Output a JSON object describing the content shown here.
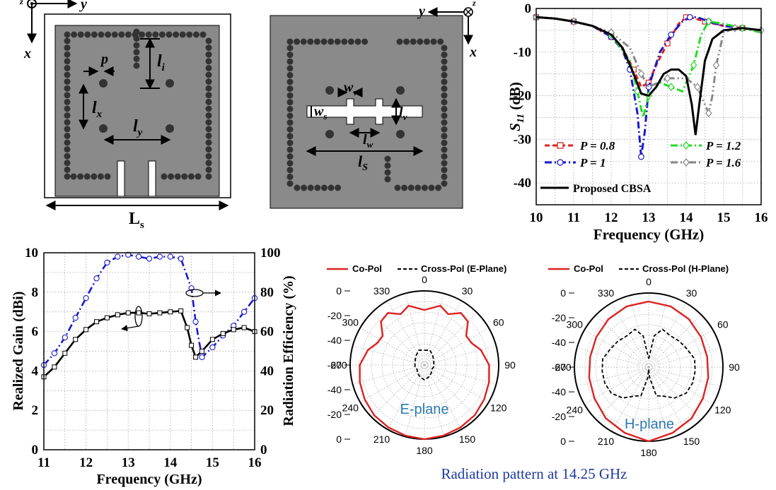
{
  "geometry": {
    "left_panel": {
      "axis_x": "x",
      "axis_y": "y",
      "axis_z": "z",
      "p": "p",
      "li": "l",
      "li_sub": "i",
      "lx": "l",
      "lx_sub": "x",
      "ly": "l",
      "ly_sub": "y",
      "Ls": "L",
      "Ls_sub": "s"
    },
    "mid_panel": {
      "axis_x": "x",
      "axis_y": "y",
      "axis_z": "z",
      "wv": "w",
      "wv_sub": "v",
      "ws": "w",
      "ws_sub": "s",
      "lv": "l",
      "lv_sub": "v",
      "lw": "l",
      "lw_sub": "w",
      "lS": "l",
      "lS_sub": "S"
    }
  },
  "colors": {
    "black": "#000000",
    "red": "#dd2222",
    "blue": "#1a1acc",
    "green": "#22dd22",
    "gray": "#888888",
    "navy": "#1f3aa0",
    "substrate": "#888888",
    "plane_label": "#2a7ab0"
  },
  "chart_data": [
    {
      "type": "line",
      "xlabel": "Frequency (GHz)",
      "ylabel": "S11 (dB)",
      "ylabel_main": "S",
      "ylabel_sub": "11",
      "ylabel_unit": " (dB)",
      "xlim": [
        10,
        16
      ],
      "ylim": [
        -45,
        0
      ],
      "xticks": [
        "10",
        "11",
        "12",
        "13",
        "14",
        "15",
        "16"
      ],
      "yticks": [
        "0",
        "-10",
        "-20",
        "-30",
        "-40"
      ],
      "grid": true,
      "legend_loc": "bottom-left",
      "series": [
        {
          "name": "P = 0.8",
          "x": [
            10,
            10.5,
            11,
            11.5,
            12,
            12.3,
            12.6,
            12.8,
            13,
            13.2,
            13.5,
            13.8,
            14,
            14.2,
            14.5,
            15,
            15.5,
            16
          ],
          "y": [
            -2,
            -2.3,
            -3,
            -4,
            -6.5,
            -9,
            -14,
            -18,
            -17,
            -13,
            -8,
            -3.5,
            -2,
            -2.2,
            -3,
            -4,
            -4.5,
            -5
          ]
        },
        {
          "name": "P = 1",
          "x": [
            10,
            10.5,
            11,
            11.5,
            12,
            12.3,
            12.5,
            12.7,
            12.8,
            12.9,
            13,
            13.3,
            13.6,
            13.9,
            14.1,
            14.3,
            14.6,
            15,
            15.5,
            16
          ],
          "y": [
            -2,
            -2.3,
            -3,
            -4,
            -6.5,
            -9.5,
            -14,
            -24,
            -34,
            -28,
            -18,
            -10,
            -6,
            -3,
            -2,
            -2,
            -3,
            -4,
            -4.5,
            -5
          ]
        },
        {
          "name": "P = 1.2",
          "x": [
            10,
            10.5,
            11,
            11.5,
            12,
            12.5,
            12.7,
            12.85,
            13,
            13.3,
            13.6,
            13.9,
            14.2,
            14.4,
            14.6,
            15,
            15.5,
            16
          ],
          "y": [
            -2,
            -2.3,
            -3,
            -4,
            -6,
            -12,
            -19,
            -25,
            -20,
            -17,
            -18,
            -19,
            -13,
            -6,
            -3,
            -3.5,
            -4.5,
            -5.5
          ]
        },
        {
          "name": "P = 1.6",
          "x": [
            10,
            10.5,
            11,
            11.5,
            12,
            12.5,
            12.8,
            13,
            13.5,
            14,
            14.3,
            14.5,
            14.6,
            14.7,
            14.8,
            15,
            15.3,
            15.5,
            16
          ],
          "y": [
            -2,
            -2.3,
            -3,
            -4,
            -5.5,
            -9,
            -15,
            -18,
            -16,
            -16,
            -18,
            -22,
            -24,
            -20,
            -13,
            -5.5,
            -4.5,
            -4.5,
            -5
          ]
        },
        {
          "name": "Proposed CBSA",
          "x": [
            10,
            10.5,
            11,
            11.5,
            12,
            12.3,
            12.6,
            12.8,
            13,
            13.2,
            13.4,
            13.6,
            13.8,
            14,
            14.15,
            14.25,
            14.35,
            14.5,
            14.7,
            15,
            15.5,
            16
          ],
          "y": [
            -2,
            -2.3,
            -3,
            -4,
            -6,
            -9,
            -15,
            -19.5,
            -20,
            -18,
            -15,
            -14,
            -14,
            -15.5,
            -22,
            -29,
            -22,
            -12,
            -7,
            -5,
            -4.5,
            -5
          ]
        }
      ]
    },
    {
      "type": "line",
      "xlabel": "Frequency (GHz)",
      "ylabel": "Realized Gain (dBi)",
      "y2label": "Radiation Efficiency (%)",
      "xlim": [
        11,
        16
      ],
      "ylim": [
        0,
        10
      ],
      "y2lim": [
        0,
        100
      ],
      "xticks": [
        "11",
        "12",
        "13",
        "14",
        "15",
        "16"
      ],
      "yticks": [
        "0",
        "2",
        "4",
        "6",
        "8",
        "10"
      ],
      "y2ticks": [
        "0",
        "20",
        "40",
        "60",
        "80",
        "100"
      ],
      "grid": true,
      "series": [
        {
          "name": "Realized Gain",
          "axis": "left",
          "x": [
            11,
            11.25,
            11.5,
            11.75,
            12,
            12.25,
            12.5,
            12.75,
            13,
            13.25,
            13.5,
            13.75,
            14,
            14.25,
            14.4,
            14.5,
            14.6,
            14.75,
            15,
            15.25,
            15.5,
            15.75,
            16
          ],
          "y": [
            3.7,
            4.2,
            4.9,
            5.6,
            6.1,
            6.5,
            6.7,
            6.85,
            6.95,
            6.95,
            6.9,
            6.95,
            7.0,
            7.05,
            6.2,
            5.3,
            4.7,
            5.0,
            5.6,
            5.9,
            6.1,
            6.2,
            6.0
          ]
        },
        {
          "name": "Radiation Efficiency",
          "axis": "right",
          "x": [
            11,
            11.25,
            11.5,
            11.75,
            12,
            12.25,
            12.5,
            12.75,
            13,
            13.25,
            13.5,
            13.75,
            14,
            14.25,
            14.5,
            14.6,
            14.75,
            15,
            15.25,
            15.5,
            15.75,
            16
          ],
          "y": [
            43,
            49,
            57,
            67,
            77,
            87,
            95,
            98,
            99,
            98,
            97,
            98,
            98,
            97,
            82,
            65,
            47,
            52,
            58,
            63,
            70,
            77
          ]
        }
      ]
    },
    {
      "type": "polar",
      "title": "E-plane",
      "rticks": [
        "0",
        "-20",
        "-40",
        "-60",
        "-40",
        "-20",
        "0"
      ],
      "angle_labels": [
        "0",
        "30",
        "60",
        "90",
        "120",
        "150",
        "180",
        "210",
        "240",
        "270",
        "300",
        "330"
      ],
      "rlim": [
        -70,
        0
      ],
      "legend": [
        "Co-Pol",
        "Cross-Pol (E-Plane)"
      ],
      "series": [
        {
          "name": "Co-Pol",
          "theta": [
            0,
            15,
            25,
            35,
            45,
            55,
            65,
            75,
            90,
            105,
            120,
            135,
            150,
            165,
            180,
            195,
            210,
            225,
            240,
            255,
            270,
            285,
            295,
            305,
            315,
            325,
            335,
            345,
            360
          ],
          "r": [
            -18,
            -12,
            -17,
            -10,
            -12,
            -22,
            -21,
            -15,
            -9,
            -7,
            -5,
            -3,
            -2,
            -1,
            0,
            -1,
            -2,
            -3,
            -5,
            -7,
            -9,
            -15,
            -21,
            -22,
            -12,
            -10,
            -17,
            -12,
            -18
          ]
        },
        {
          "name": "Cross-Pol (E-Plane)",
          "theta": [
            0,
            20,
            40,
            60,
            80,
            100,
            120,
            140,
            160,
            180,
            200,
            220,
            240,
            260,
            280,
            300,
            320,
            340,
            360
          ],
          "r": [
            -56,
            -55,
            -58,
            -60,
            -61,
            -61,
            -62,
            -60,
            -58,
            -56,
            -58,
            -60,
            -62,
            -61,
            -61,
            -60,
            -58,
            -55,
            -56
          ]
        }
      ]
    },
    {
      "type": "polar",
      "title": "H-plane",
      "rticks": [
        "0",
        "-20",
        "-40",
        "-60",
        "-40",
        "-20",
        "0"
      ],
      "angle_labels": [
        "0",
        "30",
        "60",
        "90",
        "120",
        "150",
        "180",
        "210",
        "240",
        "270",
        "300",
        "330"
      ],
      "rlim": [
        -70,
        0
      ],
      "legend": [
        "Co-Pol",
        "Cross-Pol (H-Plane)"
      ],
      "series": [
        {
          "name": "Co-Pol",
          "theta": [
            0,
            20,
            40,
            60,
            80,
            100,
            120,
            140,
            160,
            180,
            200,
            220,
            240,
            260,
            280,
            300,
            320,
            340,
            360
          ],
          "r": [
            -8,
            -9,
            -11,
            -13,
            -14,
            -13,
            -11,
            -7,
            -4,
            0,
            -4,
            -7,
            -11,
            -13,
            -14,
            -13,
            -11,
            -9,
            -8
          ]
        },
        {
          "name": "Cross-Pol (H-Plane)",
          "theta": [
            0,
            10,
            20,
            35,
            50,
            65,
            80,
            95,
            110,
            125,
            140,
            155,
            165,
            175,
            180,
            185,
            195,
            205,
            220,
            235,
            250,
            265,
            280,
            295,
            310,
            325,
            340,
            350,
            360
          ],
          "r": [
            -62,
            -40,
            -32,
            -34,
            -32,
            -30,
            -26,
            -26,
            -26,
            -27,
            -32,
            -40,
            -42,
            -60,
            -68,
            -60,
            -42,
            -40,
            -32,
            -27,
            -26,
            -26,
            -26,
            -30,
            -32,
            -34,
            -32,
            -40,
            -62
          ]
        }
      ]
    }
  ],
  "caption": "Radiation pattern at 14.25 GHz"
}
